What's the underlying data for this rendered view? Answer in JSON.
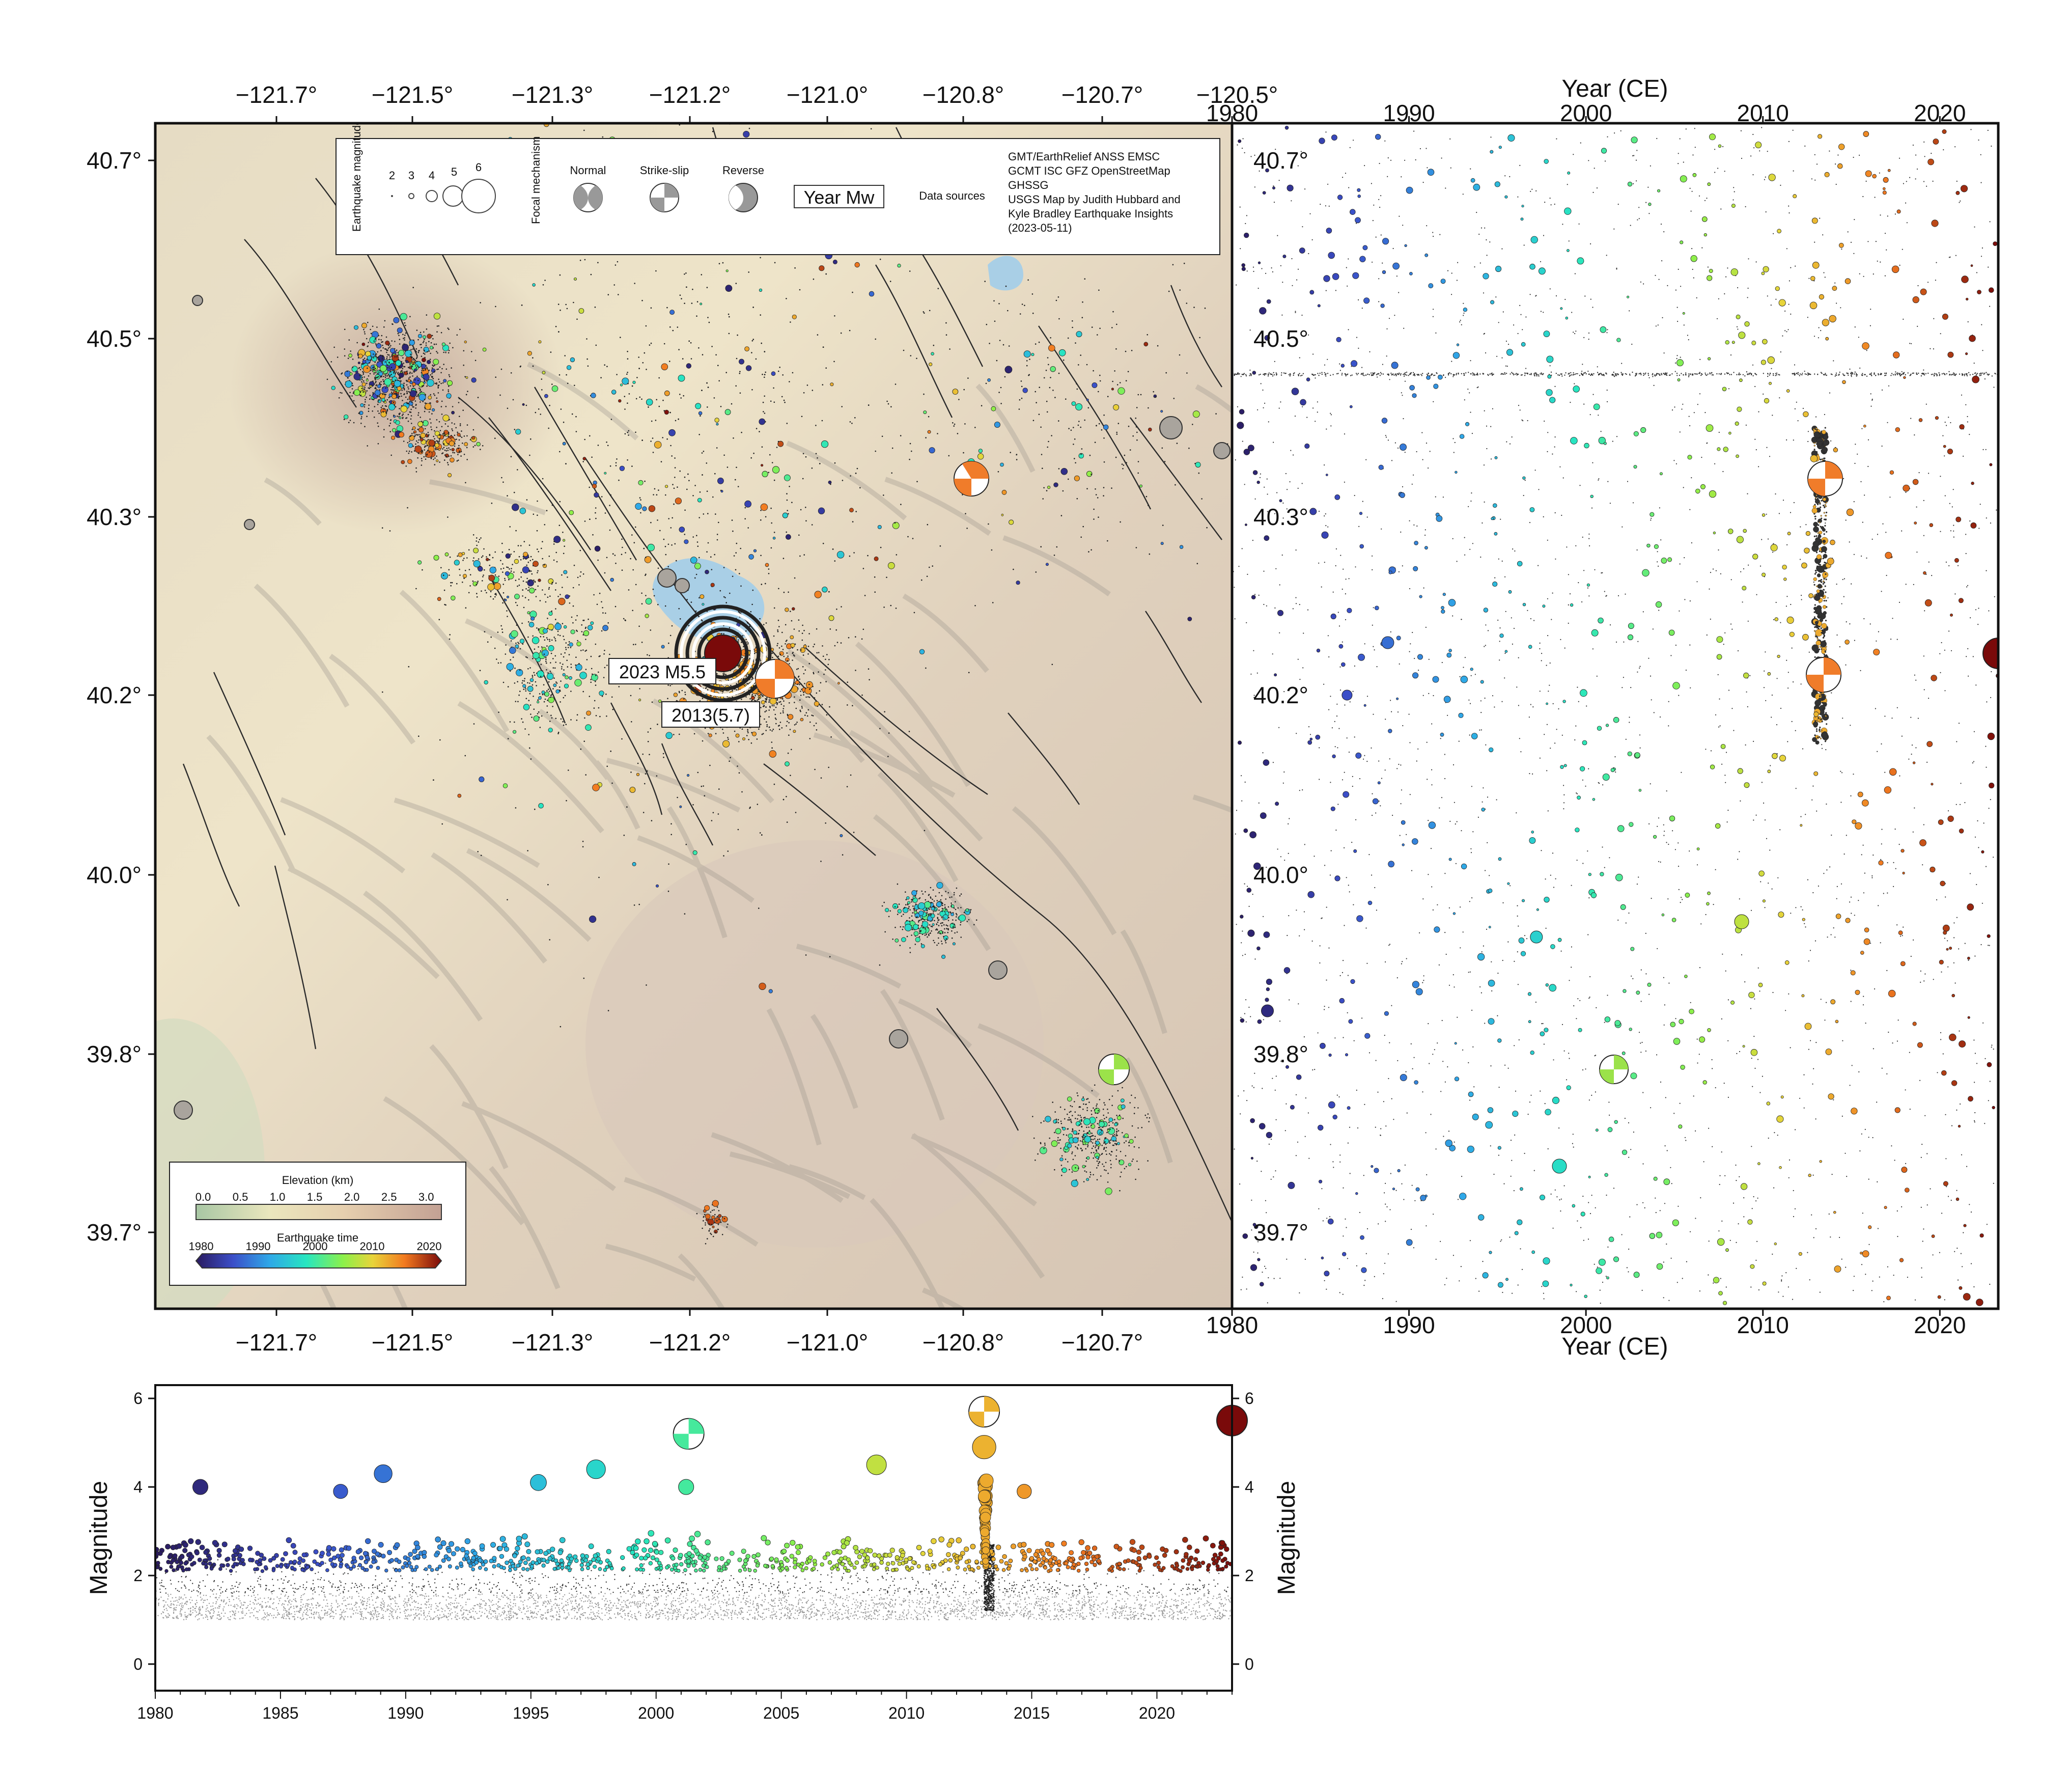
{
  "map": {
    "lon_ticks": [
      "−121.7°",
      "−121.5°",
      "−121.3°",
      "−121.2°",
      "−121.0°",
      "−120.8°",
      "−120.7°",
      "−120.5°"
    ],
    "lat_ticks": [
      "40.7°",
      "40.5°",
      "40.3°",
      "40.2°",
      "40.0°",
      "39.8°",
      "39.7°"
    ],
    "labels": {
      "event_2023": "2023 M5.5",
      "event_2013": "2013(5.7)"
    }
  },
  "legend": {
    "magnitude_title": "Earthquake magnitude",
    "magnitudes": [
      "2",
      "3",
      "4",
      "5",
      "6"
    ],
    "focal_title": "Focal mechanism",
    "mechanisms": [
      "Normal",
      "Strike-slip",
      "Reverse"
    ],
    "year_mw": "Year Mw",
    "data_sources_label": "Data sources",
    "sources": [
      "GMT/EarthRelief ANSS EMSC",
      "GCMT ISC GFZ OpenStreetMap",
      "GHSSG",
      "USGS Map by Judith Hubbard and",
      "Kyle Bradley Earthquake Insights",
      "(2023-05-11)"
    ]
  },
  "colorbars": {
    "elevation_title": "Elevation (km)",
    "elevation_ticks": [
      "0.0",
      "0.5",
      "1.0",
      "1.5",
      "2.0",
      "2.5",
      "3.0"
    ],
    "time_title": "Earthquake time",
    "time_ticks": [
      "1980",
      "1990",
      "2000",
      "2010",
      "2020"
    ]
  },
  "time_panel": {
    "xlabel_top": "Year (CE)",
    "xlabel_bottom": "Year (CE)",
    "year_ticks": [
      "1980",
      "1990",
      "2000",
      "2010",
      "2020"
    ],
    "lat_ticks": [
      "40.7°",
      "40.5°",
      "40.3°",
      "40.2°",
      "40.0°",
      "39.8°",
      "39.7°"
    ]
  },
  "mag_panel": {
    "ylabel": "Magnitude",
    "y_ticks": [
      "6",
      "4",
      "2",
      "0"
    ],
    "x_ticks": [
      "1980",
      "1985",
      "1990",
      "1995",
      "2000",
      "2005",
      "2010",
      "2015",
      "2020"
    ]
  },
  "chart_data": {
    "type": "scatter",
    "x_range": [
      1980,
      2023
    ],
    "y_range": [
      -0.6,
      6.3
    ],
    "xlabel": "",
    "ylabel": "Magnitude",
    "highlighted_events": [
      {
        "year": 2001.3,
        "magnitude": 5.2,
        "latitude": 39.79
      },
      {
        "year": 2013.1,
        "magnitude": 5.7,
        "latitude": 40.21
      },
      {
        "year": 2023.3,
        "magnitude": 5.5,
        "latitude": 40.23
      }
    ],
    "notable_events": [
      {
        "year": 1981.8,
        "magnitude": 4.0
      },
      {
        "year": 1987.4,
        "magnitude": 3.9
      },
      {
        "year": 1989.1,
        "magnitude": 4.3
      },
      {
        "year": 1995.3,
        "magnitude": 4.1
      },
      {
        "year": 1997.6,
        "magnitude": 4.4
      },
      {
        "year": 2001.2,
        "magnitude": 4.0
      },
      {
        "year": 2008.8,
        "magnitude": 4.5
      },
      {
        "year": 2013.1,
        "magnitude": 4.9
      },
      {
        "year": 2014.7,
        "magnitude": 3.9
      }
    ]
  },
  "colors": {
    "frame": "#111111",
    "terrain_low": "#c8d7b6",
    "terrain_mid": "#ece2c4",
    "terrain_high": "#c9a89c",
    "water": "#a9cfe6",
    "quake_2023": "#7a0a0a",
    "quake_2013": "#f07c2a"
  }
}
